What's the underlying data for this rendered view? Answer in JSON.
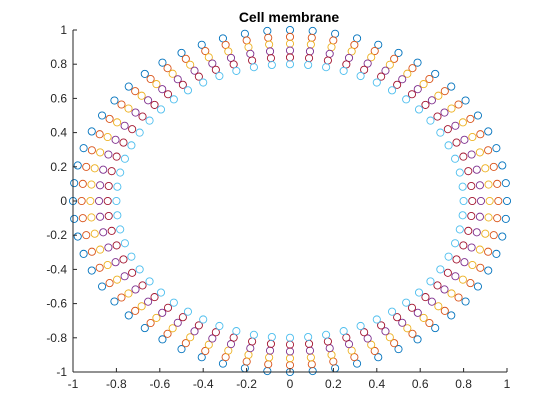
{
  "chart_data": {
    "type": "scatter",
    "title": "Cell membrane",
    "xlabel": "",
    "ylabel": "",
    "xlim": [
      -1,
      1
    ],
    "ylim": [
      -1,
      1
    ],
    "xticks": [
      "-1",
      "-0.8",
      "-0.6",
      "-0.4",
      "-0.2",
      "0",
      "0.2",
      "0.4",
      "0.6",
      "0.8",
      "1"
    ],
    "yticks": [
      "1",
      "0.8",
      "0.6",
      "0.4",
      "0.2",
      "0",
      "-0.2",
      "-0.4",
      "-0.6",
      "-0.8",
      "-1"
    ],
    "grid": false,
    "legend": "none",
    "marker": "open-circle",
    "points_per_ring": 60,
    "series": [
      {
        "x_radius": 1.0,
        "y_radius": 1.0,
        "color": "#0072BD"
      },
      {
        "x_radius": 0.96,
        "y_radius": 0.96,
        "color": "#D95319"
      },
      {
        "x_radius": 0.92,
        "y_radius": 0.92,
        "color": "#EDB120"
      },
      {
        "x_radius": 0.88,
        "y_radius": 0.88,
        "color": "#7E2F8E"
      },
      {
        "x_radius": 0.84,
        "y_radius": 0.84,
        "color": "#A2142F"
      },
      {
        "x_radius": 0.8,
        "y_radius": 0.8,
        "color": "#4DBEEE"
      }
    ]
  }
}
